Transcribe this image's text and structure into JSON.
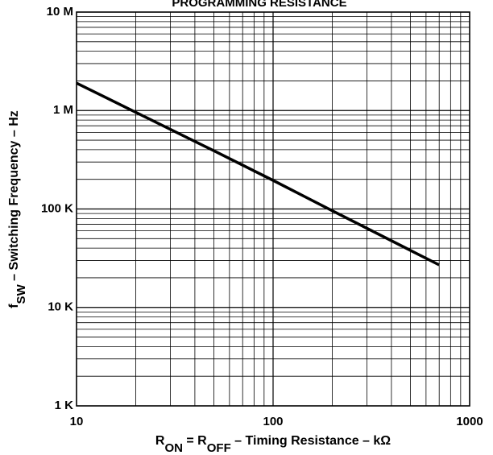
{
  "chart_data": {
    "type": "line",
    "title": "PROGRAMMING RESISTANCE",
    "xlabel": {
      "parts": [
        "R",
        "ON",
        " = R",
        "OFF",
        " – Timing Resistance – kΩ"
      ]
    },
    "ylabel": {
      "parts": [
        "f",
        "SW",
        " – Switching Frequency – Hz"
      ]
    },
    "xscale": "log",
    "yscale": "log",
    "xlim": [
      10,
      1000
    ],
    "ylim": [
      1000,
      10000000
    ],
    "xticks": [
      {
        "value": 10,
        "label": "10"
      },
      {
        "value": 100,
        "label": "100"
      },
      {
        "value": 1000,
        "label": "1000"
      }
    ],
    "yticks": [
      {
        "value": 1000,
        "label": "1 K"
      },
      {
        "value": 10000,
        "label": "10 K"
      },
      {
        "value": 100000,
        "label": "100 K"
      },
      {
        "value": 1000000,
        "label": "1 M"
      },
      {
        "value": 10000000,
        "label": "10 M"
      }
    ],
    "grid": true,
    "series": [
      {
        "x": [
          10,
          20,
          50,
          100,
          200,
          500,
          700
        ],
        "y": [
          1900000,
          960000,
          390000,
          195000,
          96000,
          38000,
          27000
        ]
      }
    ]
  }
}
